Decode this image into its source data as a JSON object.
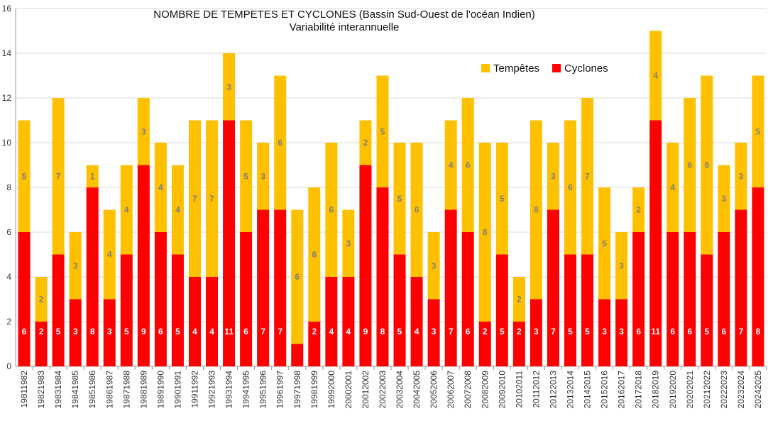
{
  "chart_data": {
    "type": "bar",
    "stacked": true,
    "title": "NOMBRE DE TEMPETES ET CYCLONES (Bassin Sud-Ouest de l'océan Indien)",
    "subtitle": "Variabilité interannuelle",
    "xlabel": "",
    "ylabel": "",
    "ylim": [
      0,
      16
    ],
    "yticks": [
      0,
      2,
      4,
      6,
      8,
      10,
      12,
      14,
      16
    ],
    "grid": true,
    "legend_position": "top-right",
    "categories": [
      "19811982",
      "19821983",
      "19831984",
      "19841985",
      "19851986",
      "19861987",
      "19871988",
      "19881989",
      "19891990",
      "19901991",
      "19911992",
      "19921993",
      "19931994",
      "19941995",
      "19951996",
      "19961997",
      "19971998",
      "19981999",
      "19992000",
      "20002001",
      "20012002",
      "20022003",
      "20032004",
      "20042005",
      "20052006",
      "20062007",
      "20072008",
      "20082009",
      "20092010",
      "20102011",
      "20112012",
      "20122013",
      "20132014",
      "20142015",
      "20152016",
      "20162017",
      "20172018",
      "20182019",
      "20192020",
      "20202021",
      "20212022",
      "20222023",
      "20232024",
      "20242025"
    ],
    "series": [
      {
        "name": "Cyclones",
        "color": "#ff0000",
        "values": [
          6,
          2,
          5,
          3,
          8,
          3,
          5,
          9,
          6,
          5,
          4,
          4,
          11,
          6,
          7,
          7,
          1,
          2,
          4,
          4,
          9,
          8,
          5,
          4,
          3,
          7,
          6,
          2,
          5,
          2,
          3,
          7,
          5,
          5,
          3,
          3,
          6,
          11,
          6,
          6,
          5,
          6,
          7,
          8
        ]
      },
      {
        "name": "Tempêtes",
        "color": "#ffc000",
        "values": [
          5,
          2,
          7,
          3,
          1,
          4,
          4,
          3,
          4,
          4,
          7,
          7,
          3,
          5,
          3,
          6,
          6,
          6,
          6,
          3,
          2,
          5,
          5,
          6,
          3,
          4,
          6,
          8,
          5,
          2,
          8,
          3,
          6,
          7,
          5,
          3,
          2,
          4,
          4,
          6,
          8,
          3,
          3,
          5
        ]
      }
    ]
  }
}
